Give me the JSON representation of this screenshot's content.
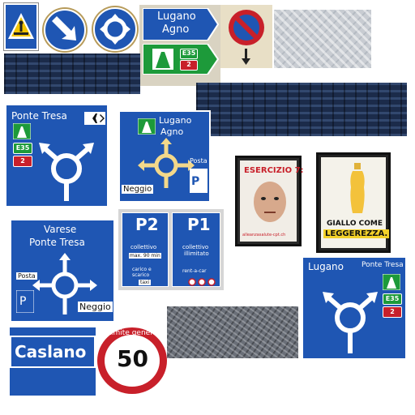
{
  "signs": {
    "lugano_agno_pointer": {
      "line1": "Lugano",
      "line2": "Agno",
      "route": "E35",
      "number": "2"
    },
    "ponte_tresa_roundabout": {
      "destination": "Ponte Tresa",
      "route": "E35",
      "number": "2"
    },
    "lugano_agno_roundabout": {
      "line1": "Lugano",
      "line2": "Agno",
      "left": "Neggio",
      "right": "Posta"
    },
    "varese_roundabout": {
      "line1": "Varese",
      "line2": "Ponte Tresa",
      "left_top": "Posta",
      "right": "Neggio"
    },
    "parking_p2": {
      "label": "P2",
      "type": "collettivo",
      "purpose1": "carico e",
      "purpose2": "scarico",
      "taxi": "taxi",
      "max": "max. 90 min"
    },
    "parking_p1": {
      "label": "P1",
      "type": "collettivo",
      "duration": "illimitato",
      "rent": "rent-a-car"
    },
    "lugano_ponte_tresa_roundabout": {
      "left": "Lugano",
      "right": "Ponte Tresa",
      "route": "E35",
      "number": "2"
    },
    "caslano": {
      "name": "Caslano"
    },
    "speed_limit": {
      "caption": "Limite generale",
      "value": "50"
    }
  },
  "posters": {
    "esercizio": {
      "headline": "ESERCIZIO 7:",
      "footer": "alleanzasalute-cpt.ch"
    },
    "giallo": {
      "line1": "GIALLO COME",
      "line2": "LEGGEREZZA."
    }
  },
  "colors": {
    "sign_blue": "#1f56b3",
    "motorway_green": "#1d9a3a",
    "route_red": "#c8202a"
  }
}
